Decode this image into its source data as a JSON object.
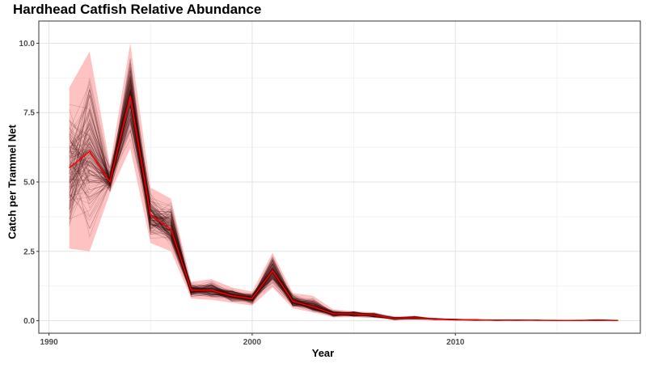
{
  "chart_data": {
    "type": "line",
    "title": "Hardhead Catfish Relative Abundance",
    "xlabel": "Year",
    "ylabel": "Catch per Trammel Net",
    "xlim": [
      1989.5,
      2019.1
    ],
    "ylim": [
      -0.45,
      10.8
    ],
    "x_ticks": [
      1990,
      2000,
      2010
    ],
    "y_ticks": [
      0.0,
      2.5,
      5.0,
      7.5,
      10.0
    ],
    "y_tick_labels": [
      "0.0",
      "2.5",
      "5.0",
      "7.5",
      "10.0"
    ],
    "grid": true,
    "colors": {
      "mean_line": "#ff0000",
      "ribbon": "#ff9999",
      "simulations": "#3a0a0a",
      "grid_major": "#e3e3e3",
      "grid_minor": "#f2f2f2",
      "panel_border": "#333333"
    },
    "series": [
      {
        "kind": "mean",
        "x": [
          1991,
          1992,
          1993,
          1994,
          1995,
          1996,
          1997,
          1998,
          1999,
          2000,
          2001,
          2002,
          2003,
          2004,
          2005,
          2006,
          2007,
          2008,
          2009,
          2010,
          2011,
          2012,
          2013,
          2014,
          2015,
          2016,
          2017,
          2018
        ],
        "y": [
          5.5,
          6.1,
          5.0,
          8.1,
          3.8,
          3.3,
          1.1,
          1.1,
          0.9,
          0.8,
          1.8,
          0.7,
          0.5,
          0.25,
          0.25,
          0.2,
          0.08,
          0.1,
          0.06,
          0.04,
          0.03,
          0.02,
          0.02,
          0.02,
          0.01,
          0.01,
          0.02,
          0.01
        ]
      },
      {
        "kind": "interval",
        "x": [
          1991,
          1992,
          1993,
          1994,
          1995,
          1996,
          1997,
          1998,
          1999,
          2000,
          2001,
          2002,
          2003,
          2004,
          2005,
          2006,
          2007,
          2008,
          2009,
          2010,
          2011,
          2012,
          2013,
          2014,
          2015,
          2016,
          2017,
          2018
        ],
        "lower": [
          2.6,
          2.5,
          4.6,
          6.2,
          2.8,
          2.5,
          0.8,
          0.75,
          0.65,
          0.55,
          1.2,
          0.45,
          0.3,
          0.12,
          0.13,
          0.1,
          0.02,
          0.04,
          0.02,
          0.01,
          0.0,
          0.0,
          0.0,
          0.0,
          0.0,
          0.0,
          0.0,
          0.0
        ],
        "upper": [
          8.4,
          9.7,
          5.6,
          10.0,
          4.8,
          4.4,
          1.4,
          1.5,
          1.2,
          1.05,
          2.45,
          1.0,
          0.9,
          0.4,
          0.35,
          0.3,
          0.15,
          0.18,
          0.1,
          0.07,
          0.05,
          0.04,
          0.04,
          0.03,
          0.03,
          0.03,
          0.05,
          0.03
        ]
      }
    ]
  }
}
